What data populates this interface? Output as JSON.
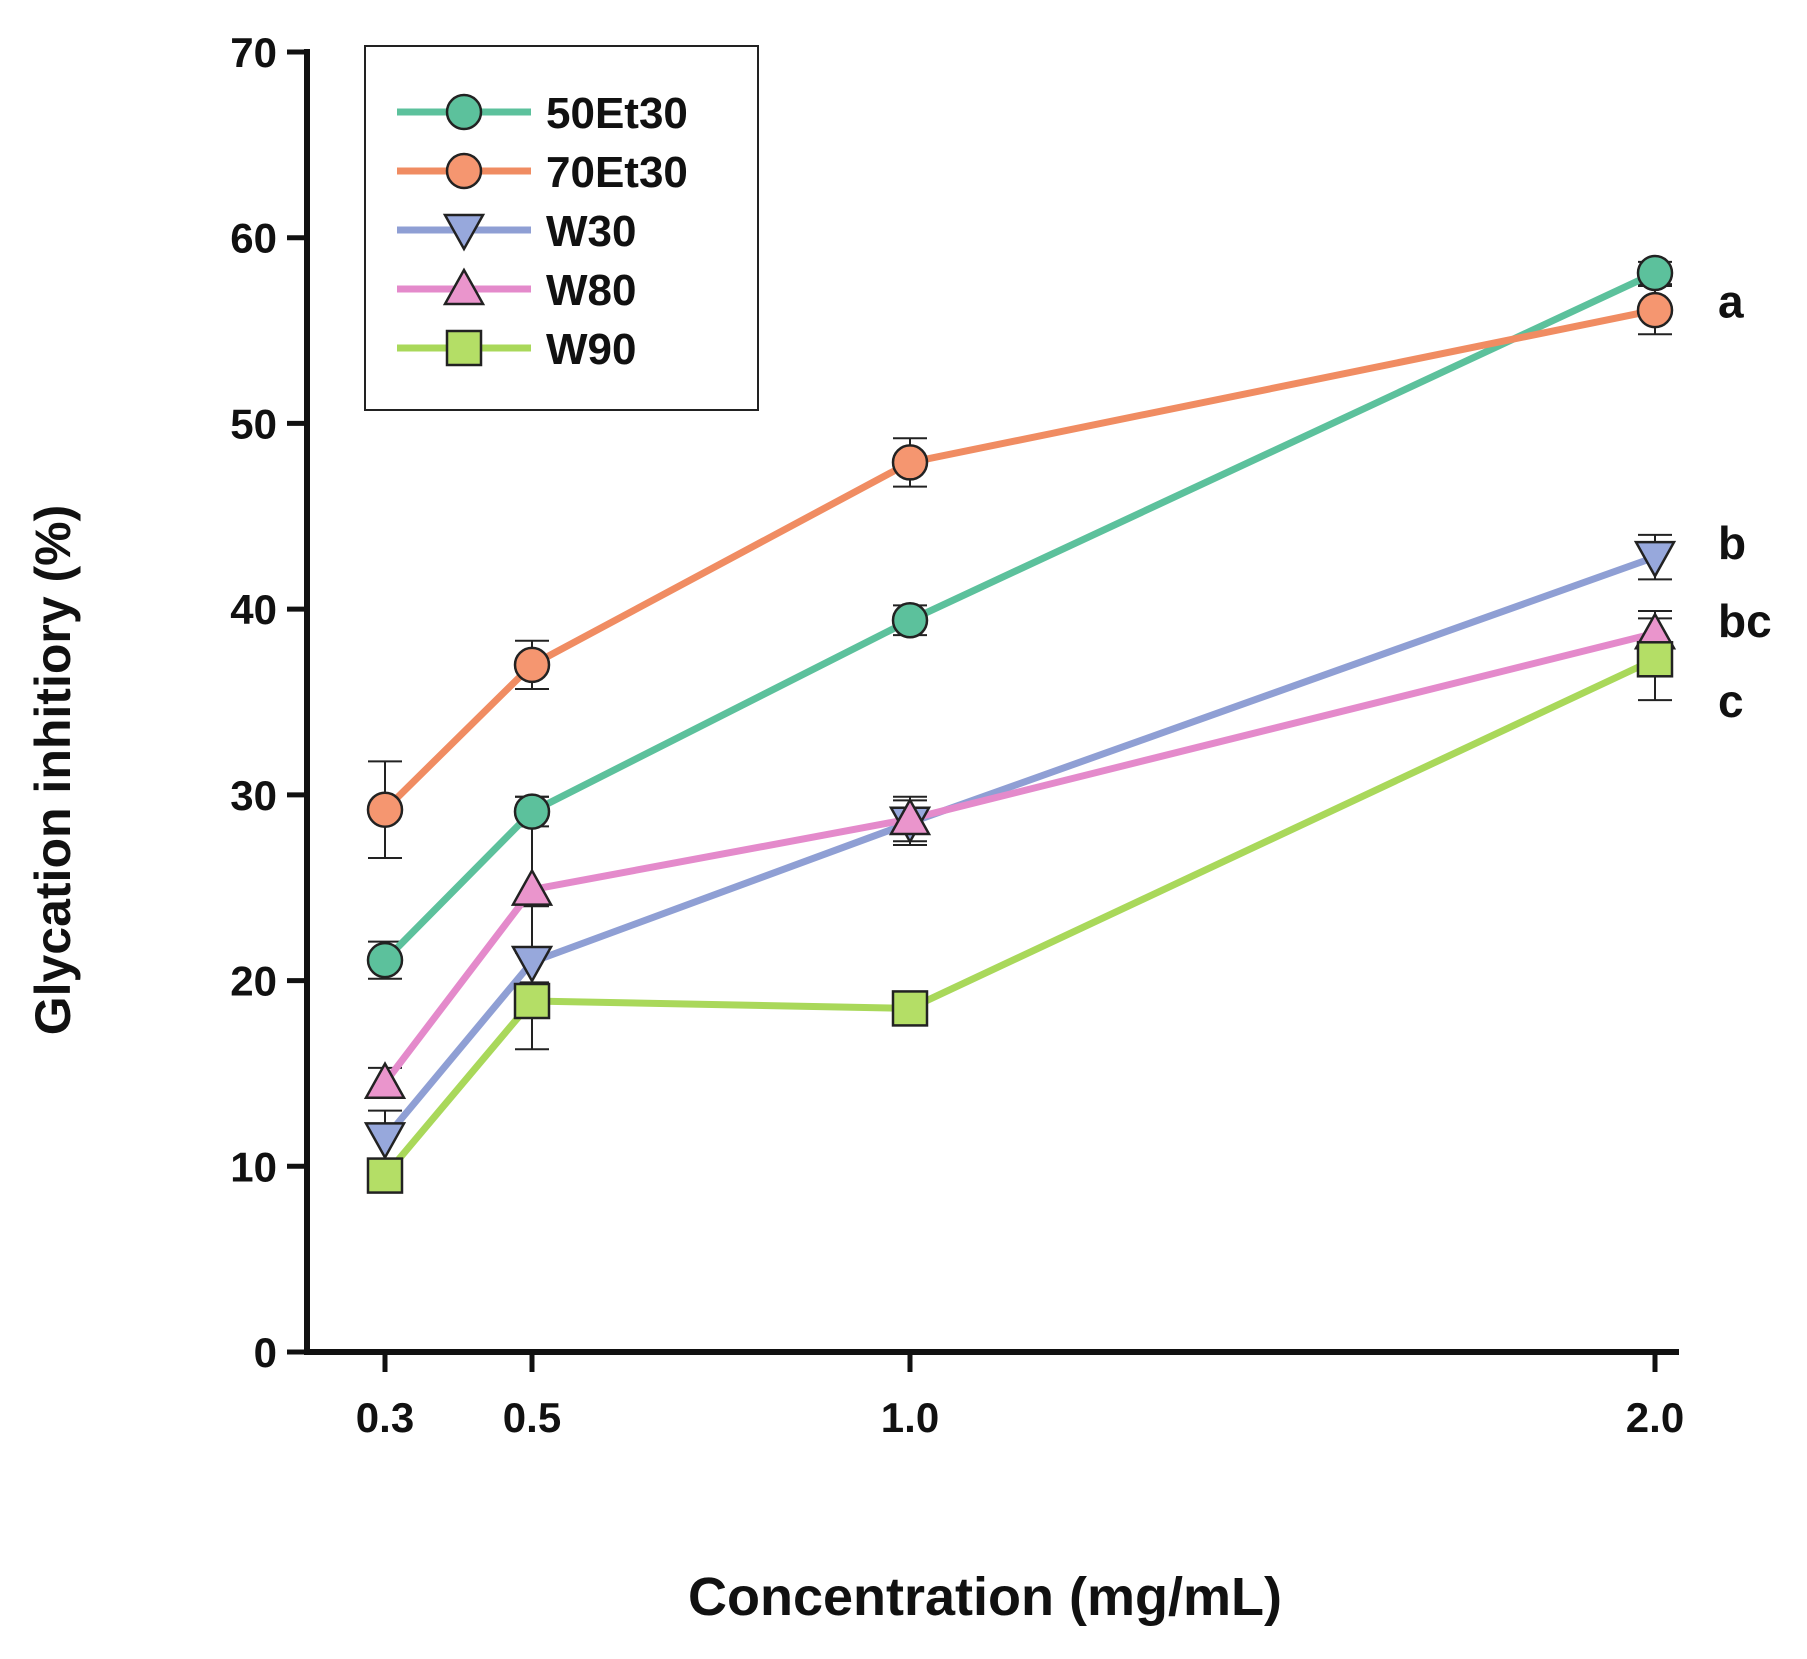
{
  "chart_data": {
    "type": "line",
    "xlabel": "Concentration (mg/mL)",
    "ylabel": "Glycation inhitiory (%)",
    "x": [
      0.3,
      0.5,
      1.0,
      2.0
    ],
    "x_tick_labels": [
      "0.3",
      "0.5",
      "1.0",
      "2.0"
    ],
    "ylim": [
      0,
      70
    ],
    "y_ticks": [
      0,
      10,
      20,
      30,
      40,
      50,
      60,
      70
    ],
    "y_tick_labels": [
      "0",
      "10",
      "20",
      "30",
      "40",
      "50",
      "60",
      "70"
    ],
    "grid": false,
    "legend_position": "top-left",
    "series": [
      {
        "name": "50Et30",
        "color": "#5cc19c",
        "marker": "circle",
        "marker_fill": "#5cc19c",
        "values": [
          21.1,
          29.1,
          39.4,
          58.1
        ],
        "errors": [
          1.0,
          0.8,
          0.8,
          0.6
        ]
      },
      {
        "name": "70Et30",
        "color": "#f08c62",
        "marker": "circle",
        "marker_fill": "#f59670",
        "values": [
          29.2,
          37.0,
          47.9,
          56.1
        ],
        "errors": [
          2.6,
          1.3,
          1.3,
          1.3
        ]
      },
      {
        "name": "W30",
        "color": "#8f9fd4",
        "marker": "triangle-down",
        "marker_fill": "#97a8dc",
        "values": [
          11.5,
          21.0,
          28.5,
          42.8
        ],
        "errors": [
          1.5,
          3.0,
          1.2,
          1.2
        ]
      },
      {
        "name": "W80",
        "color": "#e48acb",
        "marker": "triangle-up",
        "marker_fill": "#ea95cc",
        "values": [
          14.5,
          24.9,
          28.7,
          38.7
        ],
        "errors": [
          0.8,
          5.0,
          1.2,
          1.2
        ]
      },
      {
        "name": "W90",
        "color": "#a9d85a",
        "marker": "square",
        "marker_fill": "#b4de66",
        "values": [
          9.5,
          18.9,
          18.5,
          37.3
        ],
        "errors": [
          0.5,
          2.6,
          0.4,
          2.2
        ]
      }
    ],
    "annotations": [
      {
        "text": "a",
        "y": 56.5
      },
      {
        "text": "b",
        "y": 43.5
      },
      {
        "text": "bc",
        "y": 39.3
      },
      {
        "text": "c",
        "y": 35.0
      }
    ]
  }
}
